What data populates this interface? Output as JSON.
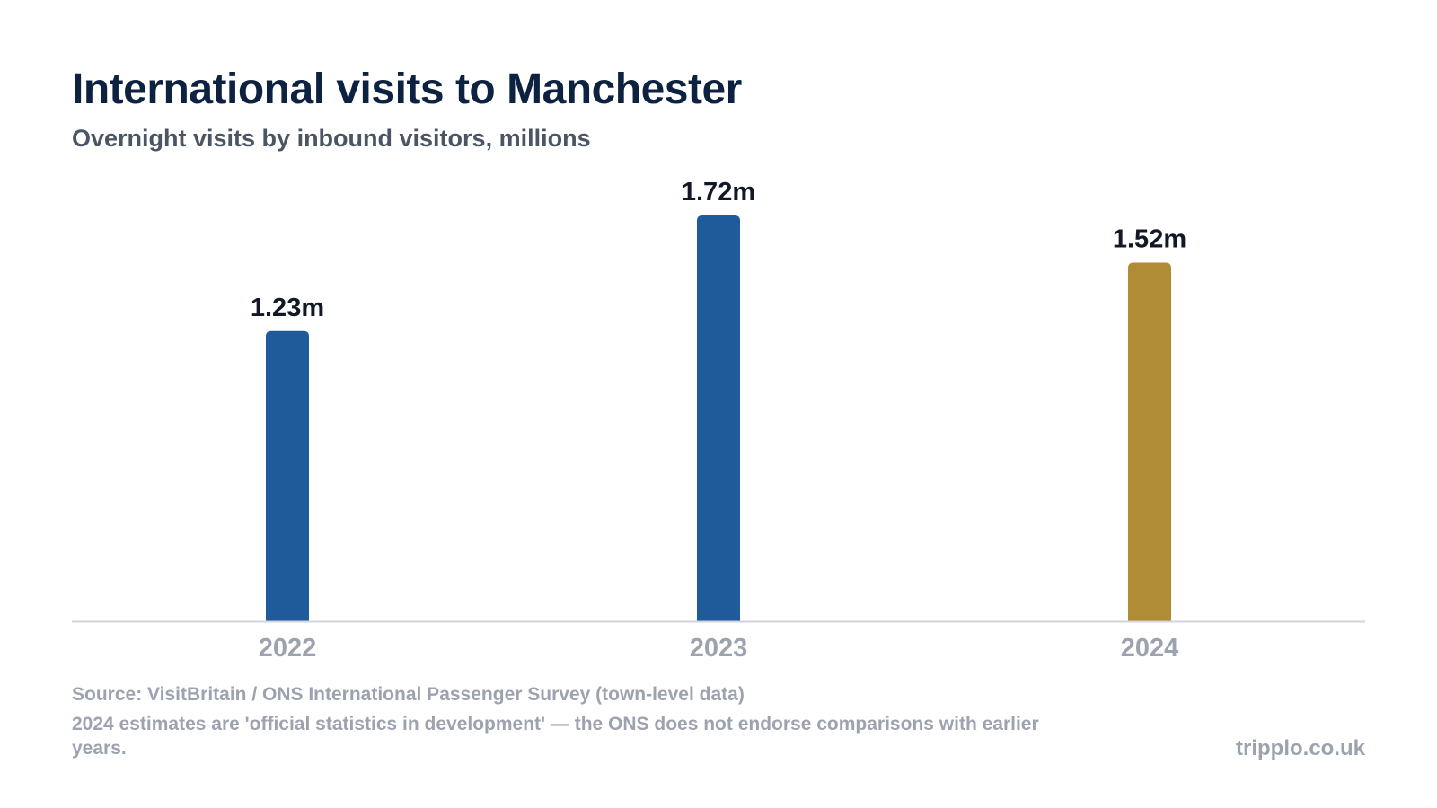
{
  "header": {
    "title": "International visits to Manchester",
    "subtitle": "Overnight visits by inbound visitors, millions"
  },
  "footer": {
    "source": "Source: VisitBritain / ONS International Passenger Survey (town-level data)",
    "note": "2024 estimates are 'official statistics in development' — the ONS does not endorse comparisons with earlier years.",
    "credit": "tripplo.co.uk"
  },
  "colors": {
    "primary_bar": "#1f5b9b",
    "highlight_bar": "#b08d35",
    "axis_line": "#d1d5db",
    "tick_label": "#9ca3af",
    "value_label": "#111827"
  },
  "chart_data": {
    "type": "bar",
    "title": "International visits to Manchester",
    "subtitle": "Overnight visits by inbound visitors, millions",
    "categories": [
      "2022",
      "2023",
      "2024"
    ],
    "values": [
      1.23,
      1.72,
      1.52
    ],
    "value_labels": [
      "1.23m",
      "1.72m",
      "1.52m"
    ],
    "bar_colors": [
      "#1f5b9b",
      "#1f5b9b",
      "#b08d35"
    ],
    "xlabel": "",
    "ylabel": "",
    "ylim": [
      0,
      1.72
    ],
    "grid": false,
    "legend": "none"
  }
}
